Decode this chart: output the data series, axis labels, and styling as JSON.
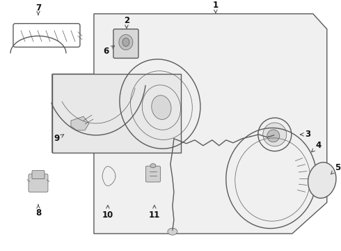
{
  "background_color": "#ffffff",
  "line_color": "#5a5a5a",
  "label_color": "#111111",
  "fig_width": 4.9,
  "fig_height": 3.6,
  "dpi": 100,
  "inner_box_color": "#eeeeee",
  "main_body_color": "#f0f0f0"
}
